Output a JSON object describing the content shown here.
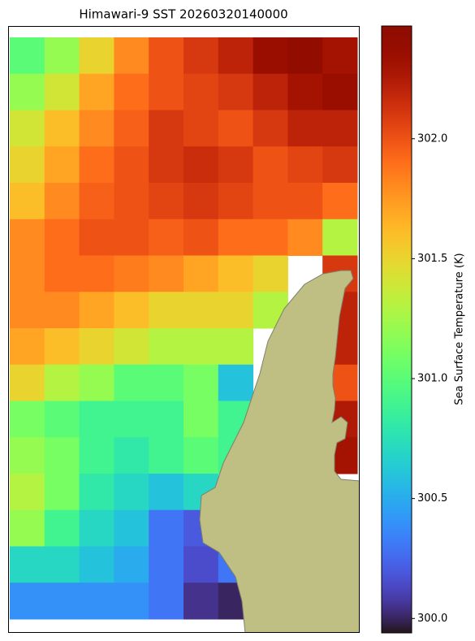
{
  "chart_data": {
    "type": "heatmap",
    "title": "Himawari-9 SST 20260320140000",
    "colormap": "turbo",
    "colorbar_label": "Sea Surface Temperature (K)",
    "clim": [
      299.94,
      302.47
    ],
    "cticks": [
      {
        "value": 300,
        "label": "300.0"
      },
      {
        "value": 300.5,
        "label": "300.5"
      },
      {
        "value": 301,
        "label": "301.0"
      },
      {
        "value": 301.5,
        "label": "301.5"
      },
      {
        "value": 302,
        "label": "302.0"
      }
    ],
    "z": [
      [
        301.0,
        301.2,
        301.5,
        301.8,
        302.0,
        302.1,
        302.2,
        302.35,
        302.4,
        302.3
      ],
      [
        301.2,
        301.4,
        301.7,
        301.9,
        302.0,
        302.05,
        302.1,
        302.2,
        302.3,
        302.35
      ],
      [
        301.4,
        301.6,
        301.8,
        301.95,
        302.1,
        302.05,
        302.0,
        302.1,
        302.2,
        302.2
      ],
      [
        301.5,
        301.7,
        301.9,
        302.0,
        302.1,
        302.15,
        302.1,
        302.0,
        302.05,
        302.1
      ],
      [
        301.6,
        301.8,
        301.95,
        302.0,
        302.05,
        302.1,
        302.05,
        302.0,
        302.0,
        301.9
      ],
      [
        301.8,
        301.9,
        302.0,
        302.0,
        301.95,
        302.0,
        301.9,
        301.9,
        301.8,
        301.3
      ],
      [
        301.8,
        301.9,
        301.9,
        301.85,
        301.8,
        301.7,
        301.6,
        301.5,
        null,
        302.1
      ],
      [
        301.8,
        301.8,
        301.7,
        301.6,
        301.5,
        301.5,
        301.5,
        301.3,
        null,
        302.2
      ],
      [
        301.7,
        301.6,
        301.5,
        301.4,
        301.3,
        301.3,
        301.3,
        null,
        null,
        302.2
      ],
      [
        301.5,
        301.3,
        301.2,
        301.0,
        301.0,
        301.1,
        300.6,
        null,
        null,
        302.0
      ],
      [
        301.1,
        301.0,
        300.9,
        300.9,
        300.9,
        301.1,
        300.9,
        null,
        null,
        302.25
      ],
      [
        301.2,
        301.1,
        300.9,
        300.8,
        300.9,
        301.0,
        300.9,
        null,
        null,
        302.3
      ],
      [
        301.3,
        301.1,
        300.8,
        300.7,
        300.6,
        300.7,
        null,
        null,
        null,
        null
      ],
      [
        301.2,
        300.9,
        300.7,
        300.6,
        300.3,
        300.2,
        null,
        null,
        null,
        null
      ],
      [
        300.7,
        300.7,
        300.6,
        300.5,
        300.3,
        300.15,
        300.3,
        null,
        null,
        null
      ],
      [
        300.4,
        300.4,
        300.4,
        300.4,
        300.3,
        300.05,
        300.0,
        null,
        null,
        null
      ]
    ]
  }
}
